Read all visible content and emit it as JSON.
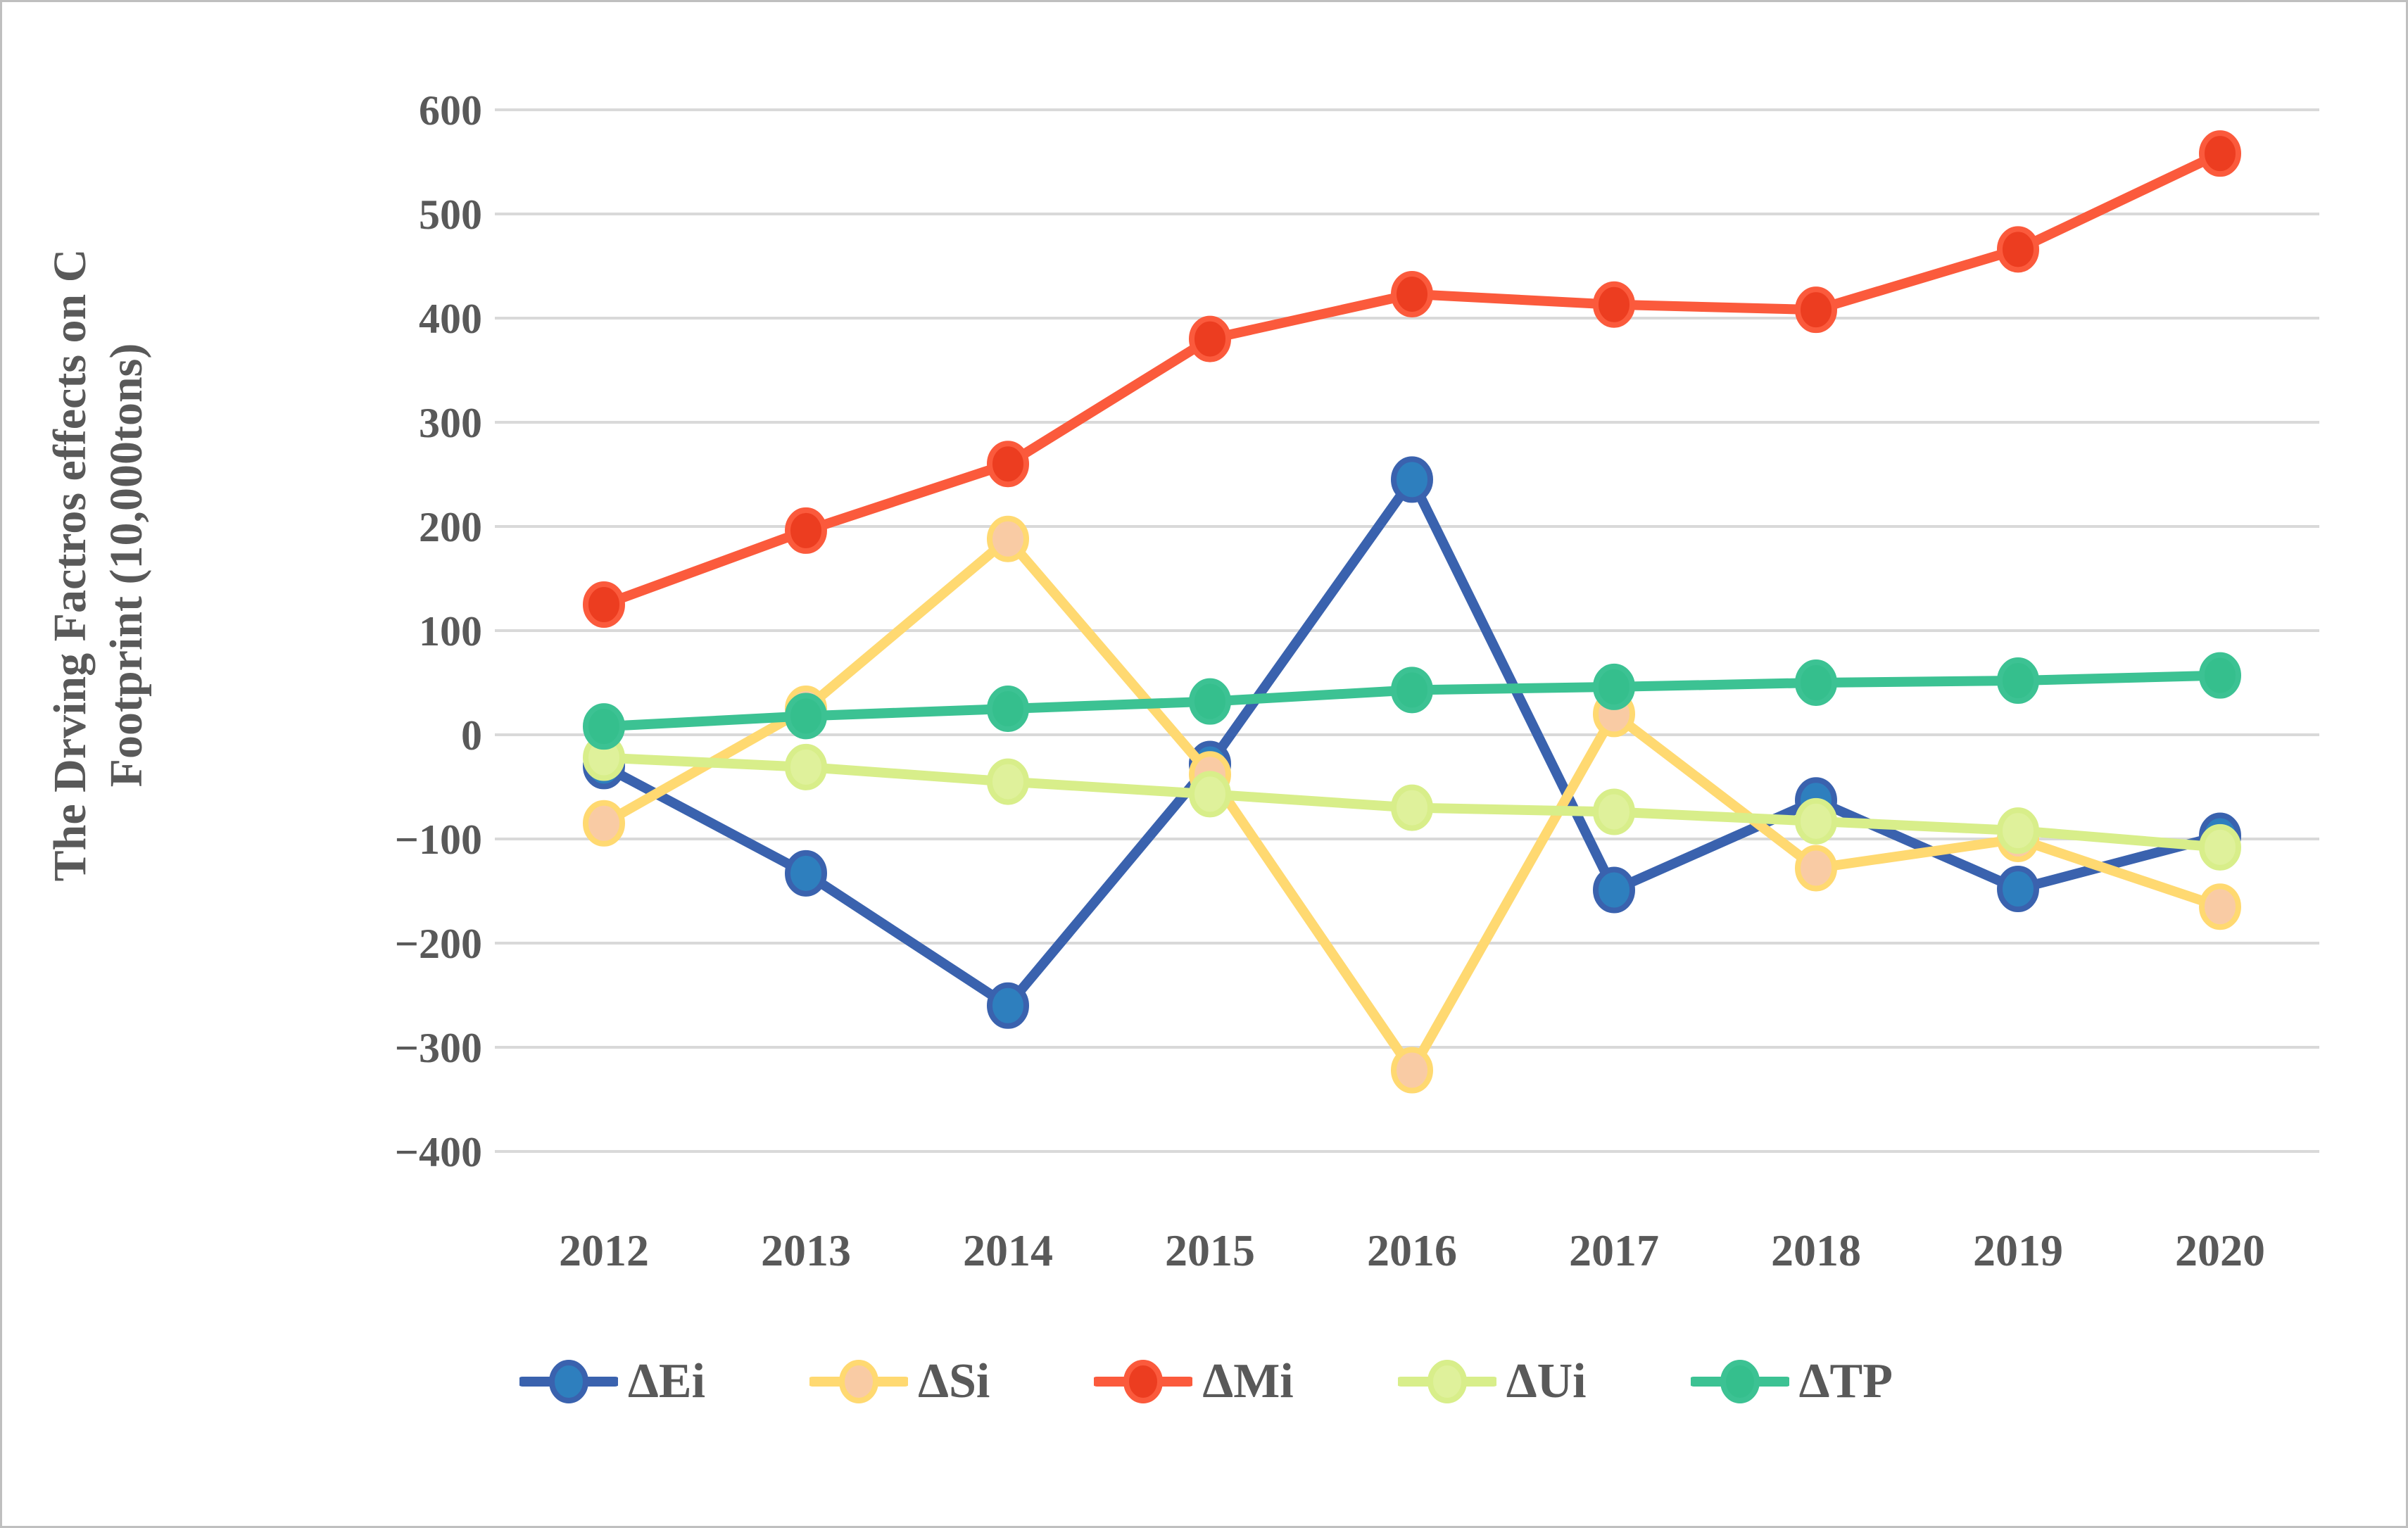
{
  "figure": {
    "border_color": "#bfbfbf",
    "background": "#ffffff"
  },
  "chart_data": {
    "type": "line",
    "title": "",
    "ylabel_line1": "The Drving Factros effects on C",
    "ylabel_line2": "Footprint (10,000tons)",
    "categories": [
      "2012",
      "2013",
      "2014",
      "2015",
      "2016",
      "2017",
      "2018",
      "2019",
      "2020"
    ],
    "series": [
      {
        "name": "ΔEi",
        "line_color": "#3A62AE",
        "marker_color": "#2E7FBE",
        "values": [
          -30,
          -133,
          -260,
          -28,
          245,
          -149,
          -63,
          -148,
          -97
        ]
      },
      {
        "name": "ΔSi",
        "line_color": "#FFD971",
        "marker_color": "#F9CBA4",
        "values": [
          -85,
          25,
          188,
          -38,
          -322,
          20,
          -128,
          -100,
          -165
        ]
      },
      {
        "name": "ΔMi",
        "line_color": "#FB5A3C",
        "marker_color": "#EC3D20",
        "values": [
          125,
          196,
          260,
          380,
          423,
          413,
          408,
          466,
          558
        ]
      },
      {
        "name": "ΔUi",
        "line_color": "#D8EE8A",
        "marker_color": "#DFF19B",
        "values": [
          -22,
          -31,
          -45,
          -57,
          -70,
          -74,
          -83,
          -92,
          -108
        ]
      },
      {
        "name": "ΔTP",
        "line_color": "#3CC293",
        "marker_color": "#35BF8D",
        "values": [
          8,
          18,
          25,
          32,
          43,
          46,
          50,
          52,
          57
        ]
      }
    ],
    "ylim": [
      -400,
      600
    ],
    "ytick_step": 100,
    "y_ticks": [
      "600",
      "500",
      "400",
      "300",
      "200",
      "100",
      "0",
      "−100",
      "−200",
      "−300",
      "−400"
    ],
    "grid": "horizontal",
    "grid_color": "#D9D9D9",
    "legend_position": "bottom",
    "text_color": "#595959"
  }
}
